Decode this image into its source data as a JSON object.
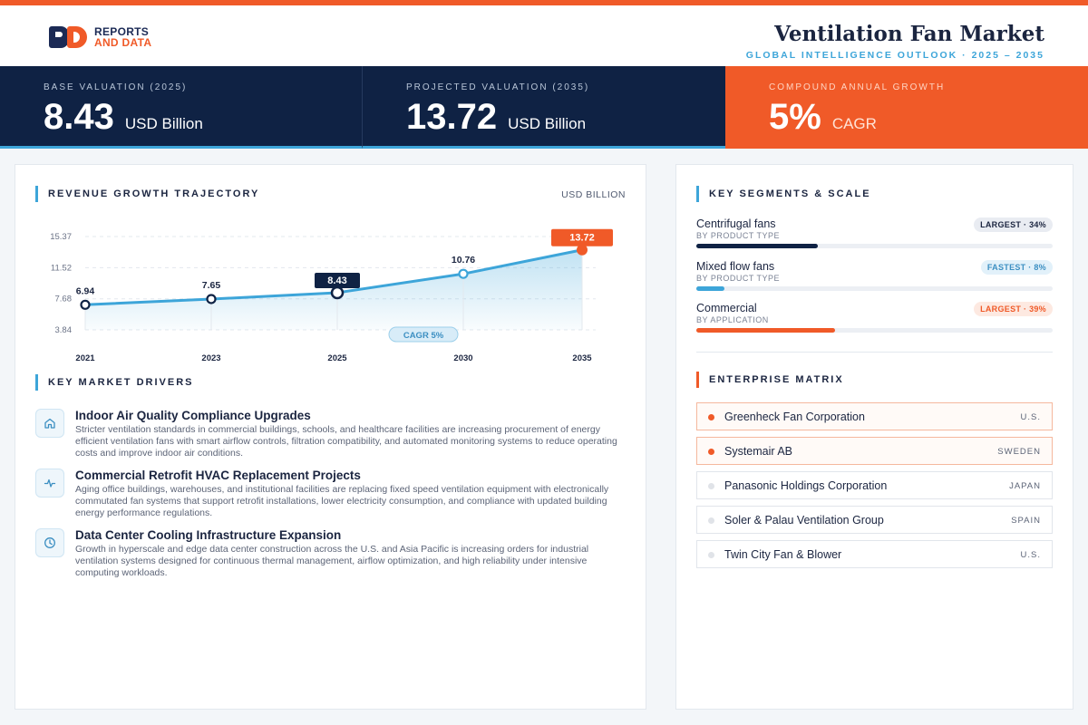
{
  "brand": {
    "line1": "REPORTS",
    "line2": "AND DATA"
  },
  "header": {
    "title": "Ventilation Fan Market",
    "subtitle": "GLOBAL INTELLIGENCE OUTLOOK  ·  2025 – 2035"
  },
  "kpis": [
    {
      "label": "BASE VALUATION (2025)",
      "value": "8.43",
      "unit": "USD Billion"
    },
    {
      "label": "PROJECTED VALUATION (2035)",
      "value": "13.72",
      "unit": "USD Billion"
    },
    {
      "label": "COMPOUND ANNUAL GROWTH",
      "value": "5%",
      "unit": "CAGR"
    }
  ],
  "colors": {
    "accent": "#f05a28",
    "navy": "#0f2244",
    "blue": "#3da5d9"
  },
  "revenue": {
    "title": "REVENUE GROWTH TRAJECTORY",
    "unit": "USD BILLION",
    "cagr_label": "CAGR 5%"
  },
  "chart_data": {
    "type": "line",
    "x": [
      "2021",
      "2023",
      "2025",
      "2030",
      "2035"
    ],
    "values": [
      6.94,
      7.65,
      8.43,
      10.76,
      13.72
    ],
    "data_labels": [
      "6.94",
      "7.65",
      "8.43",
      "10.76",
      "13.72"
    ],
    "yticks": [
      "15.37",
      "11.52",
      "7.68",
      "3.84"
    ],
    "ytick_values": [
      15.37,
      11.52,
      7.68,
      3.84
    ],
    "ylim": [
      3.84,
      15.37
    ],
    "grid": true,
    "highlight": [
      "2025",
      "2035"
    ]
  },
  "drivers": {
    "title": "KEY MARKET DRIVERS",
    "items": [
      {
        "icon": "home-icon",
        "title": "Indoor Air Quality Compliance Upgrades",
        "desc": "Stricter ventilation standards in commercial buildings, schools, and healthcare facilities are increasing procurement of energy efficient ventilation fans with smart airflow controls, filtration compatibility, and automated monitoring systems to reduce operating costs and improve indoor air conditions."
      },
      {
        "icon": "pulse-icon",
        "title": "Commercial Retrofit HVAC Replacement Projects",
        "desc": "Aging office buildings, warehouses, and institutional facilities are replacing fixed speed ventilation equipment with electronically commutated fan systems that support retrofit installations, lower electricity consumption, and compliance with updated building energy performance regulations."
      },
      {
        "icon": "clock-icon",
        "title": "Data Center Cooling Infrastructure Expansion",
        "desc": "Growth in hyperscale and edge data center construction across the U.S. and Asia Pacific is increasing orders for industrial ventilation systems designed for continuous thermal management, airflow optimization, and high reliability under intensive computing workloads."
      }
    ]
  },
  "segments": {
    "title": "KEY SEGMENTS & SCALE",
    "items": [
      {
        "name": "Centrifugal fans",
        "sub": "BY PRODUCT TYPE",
        "badge": "LARGEST · 34%",
        "share": 34,
        "tone": "navy"
      },
      {
        "name": "Mixed flow fans",
        "sub": "BY PRODUCT TYPE",
        "badge": "FASTEST · 8%",
        "share": 8,
        "tone": "blue"
      },
      {
        "name": "Commercial",
        "sub": "BY APPLICATION",
        "badge": "LARGEST · 39%",
        "share": 39,
        "tone": "orange"
      }
    ]
  },
  "enterprise": {
    "title": "ENTERPRISE MATRIX",
    "items": [
      {
        "name": "Greenheck Fan Corporation",
        "country": "U.S.",
        "highlight": true
      },
      {
        "name": "Systemair AB",
        "country": "SWEDEN",
        "highlight": true
      },
      {
        "name": "Panasonic Holdings Corporation",
        "country": "JAPAN",
        "highlight": false
      },
      {
        "name": "Soler & Palau Ventilation Group",
        "country": "SPAIN",
        "highlight": false
      },
      {
        "name": "Twin City Fan & Blower",
        "country": "U.S.",
        "highlight": false
      }
    ]
  }
}
